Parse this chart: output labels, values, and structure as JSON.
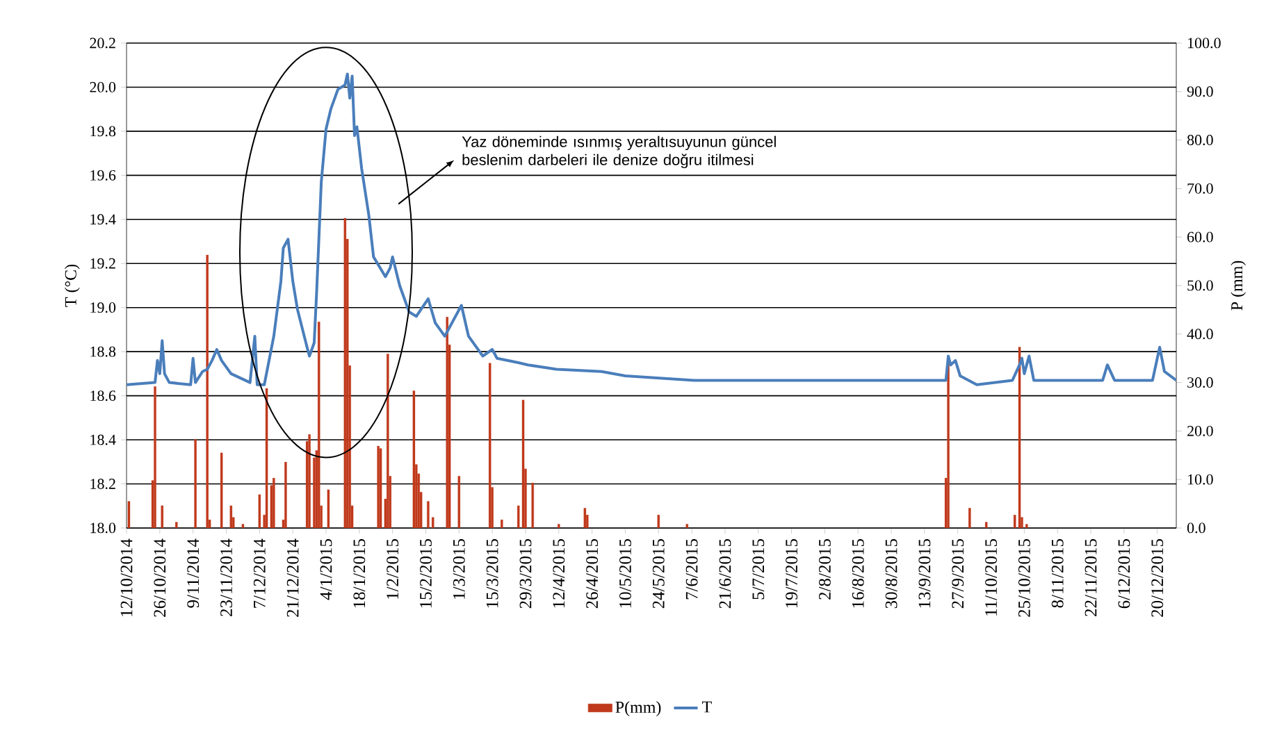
{
  "chart_data": {
    "type": "line",
    "xlabel": null,
    "ylabel": "T (°C)",
    "y2label": "P (mm)",
    "annotations": [
      "Yaz döneminde ısınmış yeraltısuyunun güncel beslenim darbeleri ile denize doğru itilmesi"
    ],
    "xlim": [
      "2014-10-12",
      "2015-12-28"
    ],
    "xticks": [
      {
        "value": "2014-10-12",
        "label": "12/10/2014"
      },
      {
        "value": "2014-10-26",
        "label": "26/10/2014"
      },
      {
        "value": "2014-11-09",
        "label": "9/11/2014"
      },
      {
        "value": "2014-11-23",
        "label": "23/11/2014"
      },
      {
        "value": "2014-12-07",
        "label": "7/12/2014"
      },
      {
        "value": "2014-12-21",
        "label": "21/12/2014"
      },
      {
        "value": "2015-01-04",
        "label": "4/1/2015"
      },
      {
        "value": "2015-01-18",
        "label": "18/1/2015"
      },
      {
        "value": "2015-02-01",
        "label": "1/2/2015"
      },
      {
        "value": "2015-02-15",
        "label": "15/2/2015"
      },
      {
        "value": "2015-03-01",
        "label": "1/3/2015"
      },
      {
        "value": "2015-03-15",
        "label": "15/3/2015"
      },
      {
        "value": "2015-03-29",
        "label": "29/3/2015"
      },
      {
        "value": "2015-04-12",
        "label": "12/4/2015"
      },
      {
        "value": "2015-04-26",
        "label": "26/4/2015"
      },
      {
        "value": "2015-05-10",
        "label": "10/5/2015"
      },
      {
        "value": "2015-05-24",
        "label": "24/5/2015"
      },
      {
        "value": "2015-06-07",
        "label": "7/6/2015"
      },
      {
        "value": "2015-06-21",
        "label": "21/6/2015"
      },
      {
        "value": "2015-07-05",
        "label": "5/7/2015"
      },
      {
        "value": "2015-07-19",
        "label": "19/7/2015"
      },
      {
        "value": "2015-08-02",
        "label": "2/8/2015"
      },
      {
        "value": "2015-08-16",
        "label": "16/8/2015"
      },
      {
        "value": "2015-08-30",
        "label": "30/8/2015"
      },
      {
        "value": "2015-09-13",
        "label": "13/9/2015"
      },
      {
        "value": "2015-09-27",
        "label": "27/9/2015"
      },
      {
        "value": "2015-10-11",
        "label": "11/10/2015"
      },
      {
        "value": "2015-10-25",
        "label": "25/10/2015"
      },
      {
        "value": "2015-11-08",
        "label": "8/11/2015"
      },
      {
        "value": "2015-11-22",
        "label": "22/11/2015"
      },
      {
        "value": "2015-12-06",
        "label": "6/12/2015"
      },
      {
        "value": "2015-12-20",
        "label": "20/12/2015"
      }
    ],
    "ylim": [
      18.0,
      20.2
    ],
    "yticks": [
      {
        "value": 18.0,
        "label": "18.0"
      },
      {
        "value": 18.2,
        "label": "18.2"
      },
      {
        "value": 18.4,
        "label": "18.4"
      },
      {
        "value": 18.6,
        "label": "18.6"
      },
      {
        "value": 18.8,
        "label": "18.8"
      },
      {
        "value": 19.0,
        "label": "19.0"
      },
      {
        "value": 19.2,
        "label": "19.2"
      },
      {
        "value": 19.4,
        "label": "19.4"
      },
      {
        "value": 19.6,
        "label": "19.6"
      },
      {
        "value": 19.8,
        "label": "19.8"
      },
      {
        "value": 20.0,
        "label": "20.0"
      },
      {
        "value": 20.2,
        "label": "20.2"
      }
    ],
    "y2lim": [
      0,
      100
    ],
    "y2ticks": [
      {
        "value": 0,
        "label": "0.0"
      },
      {
        "value": 10,
        "label": "10.0"
      },
      {
        "value": 20,
        "label": "20.0"
      },
      {
        "value": 30,
        "label": "30.0"
      },
      {
        "value": 40,
        "label": "40.0"
      },
      {
        "value": 50,
        "label": "50.0"
      },
      {
        "value": 60,
        "label": "60.0"
      },
      {
        "value": 70,
        "label": "70.0"
      },
      {
        "value": 80,
        "label": "80.0"
      },
      {
        "value": 90,
        "label": "90.0"
      },
      {
        "value": 100,
        "label": "100.0"
      }
    ],
    "grid": "y",
    "legend": "bottom",
    "series": [
      {
        "name": "P(mm)",
        "type": "bar",
        "axis": "y2",
        "color": "#c0391b",
        "x": [
          "2014-10-13",
          "2014-10-23",
          "2014-10-24",
          "2014-10-27",
          "2014-11-02",
          "2014-11-10",
          "2014-11-15",
          "2014-11-16",
          "2014-11-21",
          "2014-11-25",
          "2014-11-26",
          "2014-11-30",
          "2014-12-07",
          "2014-12-09",
          "2014-12-10",
          "2014-12-12",
          "2014-12-13",
          "2014-12-17",
          "2014-12-18",
          "2014-12-27",
          "2014-12-28",
          "2014-12-30",
          "2014-12-31",
          "2015-01-01",
          "2015-01-02",
          "2015-01-05",
          "2015-01-12",
          "2015-01-13",
          "2015-01-14",
          "2015-01-15",
          "2015-01-26",
          "2015-01-27",
          "2015-01-29",
          "2015-01-30",
          "2015-01-31",
          "2015-02-10",
          "2015-02-11",
          "2015-02-12",
          "2015-02-13",
          "2015-02-16",
          "2015-02-18",
          "2015-02-24",
          "2015-02-25",
          "2015-03-01",
          "2015-03-14",
          "2015-03-15",
          "2015-03-19",
          "2015-03-26",
          "2015-03-28",
          "2015-03-29",
          "2015-04-01",
          "2015-04-12",
          "2015-04-23",
          "2015-04-24",
          "2015-05-24",
          "2015-06-05",
          "2015-09-22",
          "2015-09-23",
          "2015-10-02",
          "2015-10-09",
          "2015-10-21",
          "2015-10-23",
          "2015-10-24",
          "2015-10-26"
        ],
        "values": [
          5.5,
          9.8,
          29.2,
          4.6,
          1.2,
          18.3,
          56.3,
          1.7,
          15.5,
          4.6,
          2.2,
          0.8,
          6.9,
          2.7,
          28.8,
          8.8,
          10.3,
          1.7,
          13.6,
          17.9,
          19.3,
          14.5,
          16.0,
          42.5,
          4.6,
          7.9,
          63.9,
          59.6,
          33.5,
          4.6,
          16.9,
          16.4,
          6.0,
          35.9,
          10.7,
          28.3,
          13.1,
          11.2,
          7.4,
          5.5,
          2.2,
          43.5,
          37.8,
          10.7,
          34.0,
          8.4,
          1.7,
          4.6,
          26.4,
          12.2,
          9.3,
          0.8,
          4.1,
          2.7,
          2.7,
          0.8,
          10.3,
          34.0,
          4.1,
          1.2,
          2.7,
          37.3,
          2.2,
          0.8
        ]
      },
      {
        "name": "T",
        "color": "#4a7ebb",
        "x": [
          "2014-10-12",
          "2014-10-24",
          "2014-10-25",
          "2014-10-26",
          "2014-10-27",
          "2014-10-28",
          "2014-10-30",
          "2014-11-08",
          "2014-11-09",
          "2014-11-10",
          "2014-11-13",
          "2014-11-15",
          "2014-11-17",
          "2014-11-19",
          "2014-11-21",
          "2014-11-25",
          "2014-12-03",
          "2014-12-05",
          "2014-12-06",
          "2014-12-09",
          "2014-12-11",
          "2014-12-13",
          "2014-12-16",
          "2014-12-17",
          "2014-12-19",
          "2014-12-21",
          "2014-12-23",
          "2014-12-27",
          "2014-12-28",
          "2014-12-30",
          "2014-12-31",
          "2015-01-02",
          "2015-01-04",
          "2015-01-06",
          "2015-01-09",
          "2015-01-12",
          "2015-01-13",
          "2015-01-14",
          "2015-01-15",
          "2015-01-16",
          "2015-01-17",
          "2015-01-19",
          "2015-01-22",
          "2015-01-24",
          "2015-01-29",
          "2015-01-31",
          "2015-02-01",
          "2015-02-04",
          "2015-02-08",
          "2015-02-11",
          "2015-02-16",
          "2015-02-19",
          "2015-02-23",
          "2015-02-26",
          "2015-03-02",
          "2015-03-05",
          "2015-03-11",
          "2015-03-15",
          "2015-03-17",
          "2015-03-26",
          "2015-03-30",
          "2015-04-11",
          "2015-04-30",
          "2015-05-10",
          "2015-06-08",
          "2015-08-06",
          "2015-09-22",
          "2015-09-23",
          "2015-09-24",
          "2015-09-26",
          "2015-09-28",
          "2015-10-05",
          "2015-10-20",
          "2015-10-23",
          "2015-10-24",
          "2015-10-25",
          "2015-10-27",
          "2015-10-29",
          "2015-11-27",
          "2015-11-29",
          "2015-12-02",
          "2015-12-18",
          "2015-12-21",
          "2015-12-23",
          "2015-12-28"
        ],
        "values": [
          18.65,
          18.66,
          18.76,
          18.7,
          18.85,
          18.7,
          18.66,
          18.65,
          18.77,
          18.66,
          18.71,
          18.72,
          18.76,
          18.81,
          18.76,
          18.7,
          18.66,
          18.87,
          18.65,
          18.65,
          18.76,
          18.87,
          19.12,
          19.27,
          19.31,
          19.12,
          18.99,
          18.82,
          18.78,
          18.84,
          19.06,
          19.57,
          19.81,
          19.9,
          19.99,
          20.01,
          20.06,
          19.95,
          20.05,
          19.78,
          19.82,
          19.63,
          19.42,
          19.23,
          19.14,
          19.18,
          19.23,
          19.1,
          18.98,
          18.96,
          19.04,
          18.93,
          18.87,
          18.93,
          19.01,
          18.87,
          18.78,
          18.81,
          18.77,
          18.75,
          18.74,
          18.72,
          18.71,
          18.69,
          18.67,
          18.67,
          18.67,
          18.78,
          18.74,
          18.76,
          18.69,
          18.65,
          18.67,
          18.74,
          18.77,
          18.7,
          18.78,
          18.67,
          18.67,
          18.74,
          18.67,
          18.67,
          18.82,
          18.71,
          18.67
        ]
      }
    ]
  }
}
